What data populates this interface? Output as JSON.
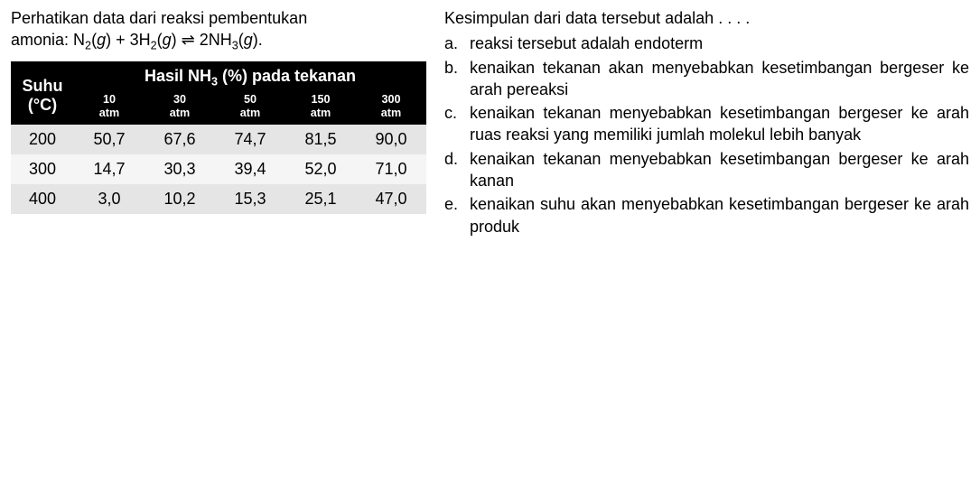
{
  "intro_line1": "Perhatikan data dari reaksi pembentukan",
  "intro_line2_prefix": "amonia: ",
  "equation_text": "N₂(g) + 3H₂(g) ⇌ 2NH₃(g).",
  "table": {
    "row_header": "Suhu (°C)",
    "col_header_top": "Hasil NH₃ (%) pada tekanan",
    "pressure_cols": [
      "10 atm",
      "30 atm",
      "50 atm",
      "150 atm",
      "300 atm"
    ],
    "temps": [
      "200",
      "300",
      "400"
    ],
    "values": [
      [
        "50,7",
        "67,6",
        "74,7",
        "81,5",
        "90,0"
      ],
      [
        "14,7",
        "30,3",
        "39,4",
        "52,0",
        "71,0"
      ],
      [
        "3,0",
        "10,2",
        "15,3",
        "25,1",
        "47,0"
      ]
    ],
    "header_bg": "#000000",
    "header_fg": "#ffffff",
    "row_bg_odd": "#e5e5e5",
    "row_bg_even": "#f5f5f5",
    "fontsize_pt": 14
  },
  "conclusion_text": "Kesimpulan dari data tersebut adalah . . . .",
  "options": [
    {
      "label": "a.",
      "text": "reaksi tersebut adalah endoterm"
    },
    {
      "label": "b.",
      "text": "kenaikan tekanan akan menyebabkan kesetimbangan bergeser ke arah pereaksi"
    },
    {
      "label": "c.",
      "text": "kenaikan tekanan menyebabkan kesetimbangan bergeser ke arah ruas reaksi yang memiliki jumlah molekul lebih banyak"
    },
    {
      "label": "d.",
      "text": "kenaikan tekanan menyebabkan kesetimbangan bergeser ke arah kanan"
    },
    {
      "label": "e.",
      "text": "kenaikan suhu akan menyebabkan kesetimbangan bergeser ke arah produk"
    }
  ]
}
